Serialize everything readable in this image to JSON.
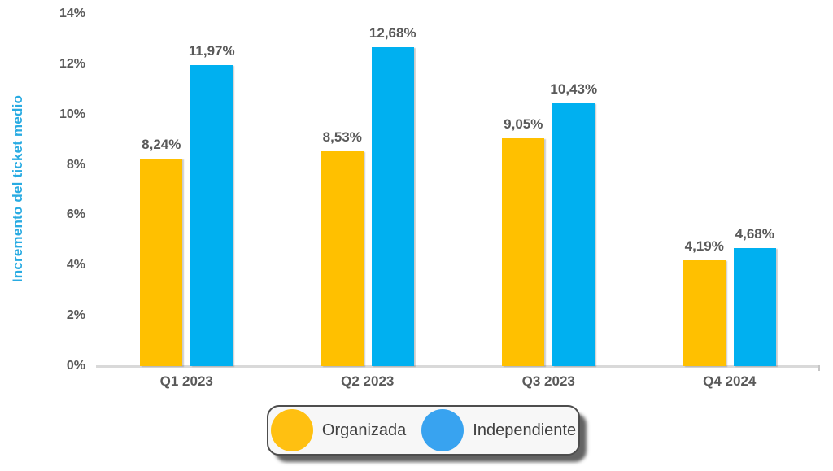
{
  "chart_data": {
    "type": "bar",
    "title": "",
    "xlabel": "",
    "ylabel": "Incremento del ticket medio",
    "ylabel_color": "#29abe2",
    "categories": [
      "Q1 2023",
      "Q2 2023",
      "Q3 2023",
      "Q4 2024"
    ],
    "series": [
      {
        "name": "Organizada",
        "color": "#ffc000",
        "legend_color": "#ffc011",
        "values": [
          8.24,
          8.53,
          9.05,
          4.19
        ],
        "labels": [
          "8,24%",
          "8,53%",
          "9,05%",
          "4,19%"
        ]
      },
      {
        "name": "Independiente",
        "color": "#00b0f0",
        "legend_color": "#38a3f0",
        "values": [
          11.97,
          12.68,
          10.43,
          4.68
        ],
        "labels": [
          "11,97%",
          "12,68%",
          "10,43%",
          "4,68%"
        ]
      }
    ],
    "y_ticks": [
      "0%",
      "2%",
      "4%",
      "6%",
      "8%",
      "10%",
      "12%",
      "14%"
    ],
    "y_tick_step": 2,
    "ylim": [
      0,
      14
    ],
    "grid": false,
    "legend_position": "bottom",
    "axis_line_color": "#d9d9d9",
    "tick_text_color": "#595959"
  }
}
